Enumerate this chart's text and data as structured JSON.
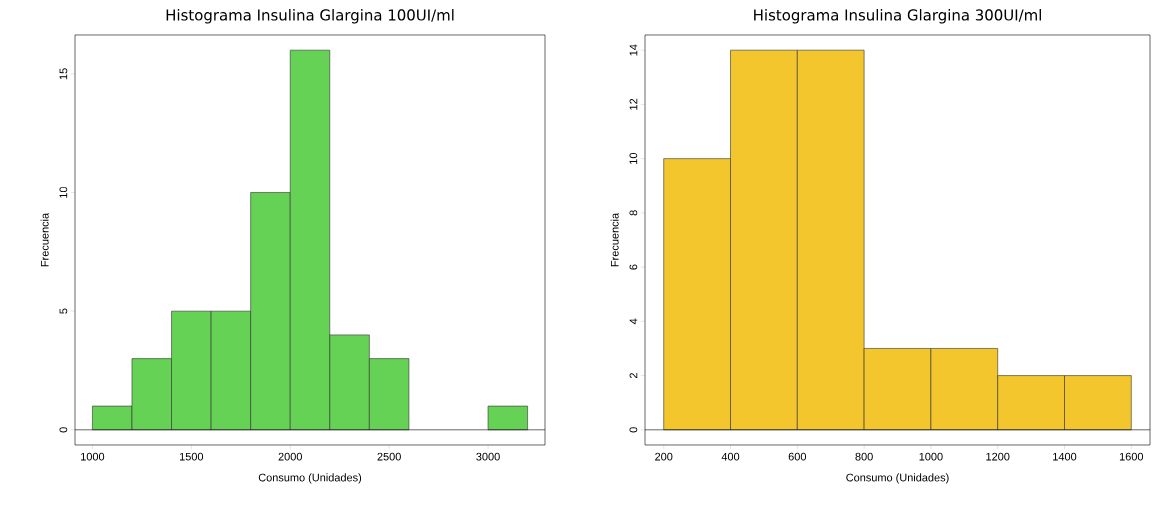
{
  "chart_data": [
    {
      "type": "histogram",
      "title": "Histograma Insulina Glargina 100UI/ml",
      "xlabel": "Consumo (Unidades)",
      "ylabel": "Frecuencia",
      "bins": [
        1000,
        1200,
        1400,
        1600,
        1800,
        2000,
        2200,
        2400,
        2600,
        2800,
        3000,
        3200
      ],
      "values": [
        1,
        3,
        5,
        5,
        10,
        16,
        4,
        3,
        0,
        0,
        1
      ],
      "color": "#66d255",
      "xlim": [
        912,
        3288
      ],
      "ylim": [
        -0.64,
        16.64
      ],
      "xticks": [
        1000,
        1500,
        2000,
        2500,
        3000
      ],
      "yticks": [
        0,
        5,
        10,
        15
      ],
      "ref_lines": [
        {
          "axis": "y",
          "value": 0
        }
      ]
    },
    {
      "type": "histogram",
      "title": "Histograma Insulina Glargina 300UI/ml",
      "xlabel": "Consumo (Unidades)",
      "ylabel": "Frecuencia",
      "bins": [
        200,
        400,
        600,
        800,
        1000,
        1200,
        1400,
        1600
      ],
      "values": [
        10,
        14,
        14,
        3,
        3,
        2,
        2
      ],
      "color": "#f2c62c",
      "xlim": [
        144,
        1656
      ],
      "ylim": [
        -0.56,
        14.56
      ],
      "xticks": [
        200,
        400,
        600,
        800,
        1000,
        1200,
        1400,
        1600
      ],
      "yticks": [
        0,
        2,
        4,
        6,
        8,
        10,
        12,
        14
      ],
      "ref_lines": [
        {
          "axis": "y",
          "value": 0
        }
      ]
    }
  ]
}
